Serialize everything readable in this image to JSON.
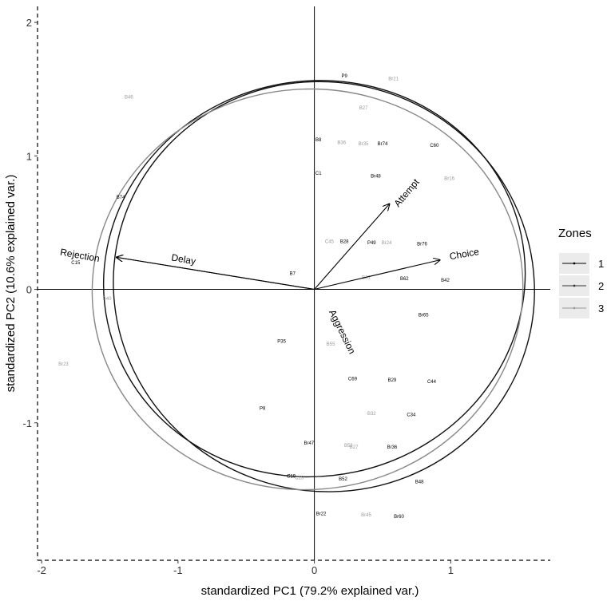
{
  "chart_data": {
    "type": "biplot",
    "title": "",
    "xlabel": "standardized PC1 (79.2% explained var.)",
    "ylabel": "standardized PC2 (10.6% explained var.)",
    "xlim": [
      -2.03,
      1.73
    ],
    "ylim": [
      -2.03,
      2.12
    ],
    "xticks": [
      -2,
      -1,
      0,
      1
    ],
    "yticks": [
      -1,
      0,
      1,
      2
    ],
    "grid": false,
    "legend": {
      "title": "Zones",
      "position": "right",
      "entries": [
        {
          "label": "1",
          "color": "#000000"
        },
        {
          "label": "2",
          "color": "#333333"
        },
        {
          "label": "3",
          "color": "#999999"
        }
      ]
    },
    "loadings": [
      {
        "name": "Attempt",
        "x": 0.55,
        "y": 0.64
      },
      {
        "name": "Choice",
        "x": 0.92,
        "y": 0.22
      },
      {
        "name": "Delay",
        "x": -1.45,
        "y": 0.24
      },
      {
        "name": "Rejection",
        "x": -1.45,
        "y": 0.24
      },
      {
        "name": "Aggression",
        "x": 0.02,
        "y": -0.02
      }
    ],
    "arrow_labels": [
      {
        "text": "Rejection",
        "x": -1.72,
        "y": 0.25,
        "angle": 10
      },
      {
        "text": "Delay",
        "x": -0.96,
        "y": 0.22,
        "angle": 10
      },
      {
        "text": "Attempt",
        "x": 0.68,
        "y": 0.72,
        "angle": -50
      },
      {
        "text": "Choice",
        "x": 1.1,
        "y": 0.26,
        "angle": -10
      },
      {
        "text": "Aggression",
        "x": 0.2,
        "y": -0.32,
        "angle": 64
      }
    ],
    "ellipses": [
      {
        "zone": "1",
        "color": "#111111",
        "cx": 0.0,
        "cy": 0.08,
        "rx": 1.55,
        "ry": 1.48,
        "angle": 12
      },
      {
        "zone": "2",
        "color": "#111111",
        "cx": 0.07,
        "cy": 0.02,
        "rx": 1.55,
        "ry": 1.53,
        "angle": -20
      },
      {
        "zone": "3",
        "color": "#888888",
        "cx": -0.05,
        "cy": 0.0,
        "rx": 1.58,
        "ry": 1.5,
        "angle": 5
      }
    ],
    "points": [
      {
        "label": "P9",
        "x": 0.22,
        "y": 1.6,
        "zone": "1"
      },
      {
        "label": "Br21",
        "x": 0.58,
        "y": 1.58,
        "zone": "3"
      },
      {
        "label": "B46",
        "x": -1.36,
        "y": 1.44,
        "zone": "3"
      },
      {
        "label": "B27",
        "x": 0.36,
        "y": 1.36,
        "zone": "3"
      },
      {
        "label": "B8",
        "x": 0.03,
        "y": 1.12,
        "zone": "1"
      },
      {
        "label": "B36",
        "x": 0.2,
        "y": 1.1,
        "zone": "3"
      },
      {
        "label": "Br35",
        "x": 0.36,
        "y": 1.09,
        "zone": "3"
      },
      {
        "label": "Br74",
        "x": 0.5,
        "y": 1.09,
        "zone": "1"
      },
      {
        "label": "C60",
        "x": 0.88,
        "y": 1.08,
        "zone": "1"
      },
      {
        "label": "C1",
        "x": 0.03,
        "y": 0.87,
        "zone": "1"
      },
      {
        "label": "Br48",
        "x": 0.45,
        "y": 0.85,
        "zone": "1"
      },
      {
        "label": "Br16",
        "x": 0.99,
        "y": 0.83,
        "zone": "3"
      },
      {
        "label": "B74",
        "x": -1.42,
        "y": 0.69,
        "zone": "1"
      },
      {
        "label": "C45",
        "x": 0.11,
        "y": 0.36,
        "zone": "3"
      },
      {
        "label": "B28",
        "x": 0.22,
        "y": 0.36,
        "zone": "1"
      },
      {
        "label": "P49",
        "x": 0.42,
        "y": 0.35,
        "zone": "1"
      },
      {
        "label": "Br24",
        "x": 0.53,
        "y": 0.35,
        "zone": "3"
      },
      {
        "label": "Br76",
        "x": 0.79,
        "y": 0.34,
        "zone": "1"
      },
      {
        "label": "C15",
        "x": -1.75,
        "y": 0.2,
        "zone": "1"
      },
      {
        "label": "B7",
        "x": -0.16,
        "y": 0.12,
        "zone": "1"
      },
      {
        "label": "B31",
        "x": 0.38,
        "y": 0.09,
        "zone": "3"
      },
      {
        "label": "B62",
        "x": 0.66,
        "y": 0.08,
        "zone": "1"
      },
      {
        "label": "B42",
        "x": 0.96,
        "y": 0.07,
        "zone": "1"
      },
      {
        "label": "B40",
        "x": -1.52,
        "y": -0.07,
        "zone": "3"
      },
      {
        "label": "Br65",
        "x": 0.8,
        "y": -0.19,
        "zone": "1"
      },
      {
        "label": "P35",
        "x": -0.24,
        "y": -0.39,
        "zone": "1"
      },
      {
        "label": "B55",
        "x": 0.12,
        "y": -0.41,
        "zone": "3"
      },
      {
        "label": "Br23",
        "x": -1.84,
        "y": -0.56,
        "zone": "3"
      },
      {
        "label": "C69",
        "x": 0.28,
        "y": -0.67,
        "zone": "1"
      },
      {
        "label": "B29",
        "x": 0.57,
        "y": -0.68,
        "zone": "1"
      },
      {
        "label": "C44",
        "x": 0.86,
        "y": -0.69,
        "zone": "1"
      },
      {
        "label": "P8",
        "x": -0.38,
        "y": -0.89,
        "zone": "1"
      },
      {
        "label": "B32",
        "x": 0.42,
        "y": -0.93,
        "zone": "3"
      },
      {
        "label": "C34",
        "x": 0.71,
        "y": -0.94,
        "zone": "1"
      },
      {
        "label": "Br47",
        "x": -0.04,
        "y": -1.15,
        "zone": "1"
      },
      {
        "label": "B52",
        "x": 0.25,
        "y": -1.17,
        "zone": "3"
      },
      {
        "label": "B27",
        "x": 0.29,
        "y": -1.18,
        "zone": "3"
      },
      {
        "label": "Br36",
        "x": 0.57,
        "y": -1.18,
        "zone": "1"
      },
      {
        "label": "C19",
        "x": -0.17,
        "y": -1.4,
        "zone": "1"
      },
      {
        "label": "C19",
        "x": -0.11,
        "y": -1.41,
        "zone": "3"
      },
      {
        "label": "B52",
        "x": 0.21,
        "y": -1.42,
        "zone": "1"
      },
      {
        "label": "B48",
        "x": 0.77,
        "y": -1.44,
        "zone": "1"
      },
      {
        "label": "Br22",
        "x": 0.05,
        "y": -1.68,
        "zone": "1"
      },
      {
        "label": "Br45",
        "x": 0.38,
        "y": -1.69,
        "zone": "3"
      },
      {
        "label": "Br60",
        "x": 0.62,
        "y": -1.7,
        "zone": "1"
      }
    ]
  }
}
